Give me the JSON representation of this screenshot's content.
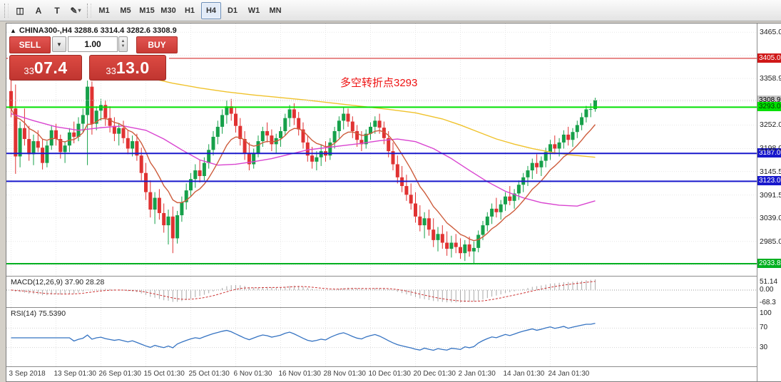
{
  "theme": {
    "candle_up": "#16a04a",
    "candle_down": "#e03232",
    "grid": "#e7e7e7",
    "macd_histogram": "#a9a9a9",
    "macd_signal": "#cc3333",
    "rsi_line": "#3573c2",
    "annotation_red": "#ee1111",
    "last_price_badge": "#c6c6c6"
  },
  "toolbar": {
    "tools": [
      {
        "name": "chart",
        "label": "◫"
      },
      {
        "name": "cursor",
        "label": "A"
      },
      {
        "name": "text",
        "label": "T"
      },
      {
        "name": "draw",
        "label": "✎"
      },
      {
        "name": "draw-dropdown",
        "label": "▾"
      }
    ],
    "timeframes": [
      {
        "label": "M1",
        "active": false
      },
      {
        "label": "M5",
        "active": false
      },
      {
        "label": "M15",
        "active": false
      },
      {
        "label": "M30",
        "active": false
      },
      {
        "label": "H1",
        "active": false
      },
      {
        "label": "H4",
        "active": true
      },
      {
        "label": "D1",
        "active": false
      },
      {
        "label": "W1",
        "active": false
      },
      {
        "label": "MN",
        "active": false
      }
    ]
  },
  "chart": {
    "collapse_icon": "▲",
    "title": "CHINA300-,H4 3288.6 3314.4 3282.6 3308.9",
    "annotation": "多空转折点3293",
    "trade_panel": {
      "sell_label": "SELL",
      "buy_label": "BUY",
      "volume": "1.00",
      "volume_dropdown_icon": "▼",
      "stepper_up": "▲",
      "stepper_down": "▼",
      "sell_price_full": "3307.4",
      "buy_price_full": "3313.0",
      "sell_price_prefix": "33",
      "sell_price_main": "07.4",
      "buy_price_prefix": "33",
      "buy_price_main": "13.0"
    },
    "levels": [
      {
        "price": 3405.0,
        "label": "3405.0",
        "color": "#d01818",
        "badge_text": "#ffffff",
        "lw": 1,
        "dotted": false
      },
      {
        "price": 3308.9,
        "label": "3308.9",
        "color": "#c6c6c6",
        "badge_text": "#000000",
        "lw": 1,
        "dotted": true
      },
      {
        "price": 3293.0,
        "label": "3293.0",
        "color": "#00e000",
        "badge_text": "#003300",
        "lw": 2,
        "dotted": false
      },
      {
        "price": 3187.0,
        "label": "3187.0",
        "color": "#1818cc",
        "badge_text": "#ffffff",
        "lw": 2,
        "dotted": false
      },
      {
        "price": 3123.0,
        "label": "3123.0",
        "color": "#1818cc",
        "badge_text": "#ffffff",
        "lw": 2,
        "dotted": false
      },
      {
        "price": 2933.8,
        "label": "2933.8",
        "color": "#00b020",
        "badge_text": "#ffffff",
        "lw": 2,
        "dotted": false
      }
    ],
    "price_ticks": [
      {
        "price": 3465.0,
        "label": "3465.0"
      },
      {
        "price": 3411.9,
        "label": ""
      },
      {
        "price": 3358.9,
        "label": "3358.9"
      },
      {
        "price": 3305.5,
        "label": ""
      },
      {
        "price": 3252.0,
        "label": "3252.0"
      },
      {
        "price": 3198.0,
        "label": "3198.0"
      },
      {
        "price": 3145.5,
        "label": "3145.5"
      },
      {
        "price": 3091.5,
        "label": "3091.5"
      },
      {
        "price": 3039.0,
        "label": "3039.0"
      },
      {
        "price": 2985.0,
        "label": "2985.0"
      },
      {
        "price": 2931.9,
        "label": ""
      }
    ]
  },
  "chart_data": {
    "type": "candlestick",
    "symbol": "CHINA300-",
    "period": "H4",
    "current_bar": {
      "open": 3288.6,
      "high": 3314.4,
      "low": 3282.6,
      "close": 3308.9
    },
    "price_range": [
      2906,
      3485
    ],
    "candles": [
      [
        3330,
        3358,
        3270,
        3290
      ],
      [
        3290,
        3345,
        3140,
        3180
      ],
      [
        3180,
        3260,
        3155,
        3245
      ],
      [
        3245,
        3290,
        3205,
        3220
      ],
      [
        3220,
        3250,
        3170,
        3185
      ],
      [
        3185,
        3230,
        3160,
        3215
      ],
      [
        3215,
        3240,
        3190,
        3200
      ],
      [
        3200,
        3220,
        3150,
        3165
      ],
      [
        3165,
        3215,
        3155,
        3205
      ],
      [
        3205,
        3250,
        3195,
        3240
      ],
      [
        3240,
        3255,
        3205,
        3220
      ],
      [
        3220,
        3230,
        3175,
        3190
      ],
      [
        3190,
        3215,
        3165,
        3205
      ],
      [
        3205,
        3245,
        3190,
        3235
      ],
      [
        3235,
        3260,
        3210,
        3225
      ],
      [
        3225,
        3270,
        3215,
        3255
      ],
      [
        3255,
        3290,
        3235,
        3275
      ],
      [
        3275,
        3362,
        3160,
        3340
      ],
      [
        3340,
        3352,
        3230,
        3255
      ],
      [
        3255,
        3295,
        3240,
        3285
      ],
      [
        3285,
        3312,
        3262,
        3298
      ],
      [
        3298,
        3308,
        3250,
        3268
      ],
      [
        3268,
        3295,
        3235,
        3250
      ],
      [
        3250,
        3270,
        3215,
        3232
      ],
      [
        3232,
        3255,
        3205,
        3245
      ],
      [
        3245,
        3262,
        3210,
        3222
      ],
      [
        3222,
        3240,
        3185,
        3198
      ],
      [
        3198,
        3228,
        3180,
        3215
      ],
      [
        3215,
        3232,
        3170,
        3182
      ],
      [
        3182,
        3200,
        3125,
        3142
      ],
      [
        3142,
        3165,
        3080,
        3098
      ],
      [
        3098,
        3125,
        3040,
        3058
      ],
      [
        3058,
        3098,
        3025,
        3085
      ],
      [
        3085,
        3105,
        3035,
        3050
      ],
      [
        3050,
        3072,
        3005,
        3022
      ],
      [
        3022,
        3058,
        2978,
        3042
      ],
      [
        3042,
        3065,
        2958,
        2992
      ],
      [
        2992,
        3055,
        2980,
        3045
      ],
      [
        3045,
        3088,
        3030,
        3075
      ],
      [
        3075,
        3118,
        3058,
        3102
      ],
      [
        3102,
        3142,
        3088,
        3128
      ],
      [
        3128,
        3162,
        3108,
        3148
      ],
      [
        3148,
        3172,
        3120,
        3135
      ],
      [
        3135,
        3178,
        3125,
        3165
      ],
      [
        3165,
        3208,
        3152,
        3195
      ],
      [
        3195,
        3238,
        3182,
        3225
      ],
      [
        3225,
        3262,
        3208,
        3248
      ],
      [
        3248,
        3288,
        3232,
        3275
      ],
      [
        3275,
        3308,
        3255,
        3295
      ],
      [
        3295,
        3312,
        3262,
        3278
      ],
      [
        3278,
        3292,
        3235,
        3250
      ],
      [
        3250,
        3268,
        3205,
        3220
      ],
      [
        3220,
        3238,
        3172,
        3188
      ],
      [
        3188,
        3212,
        3148,
        3162
      ],
      [
        3162,
        3198,
        3152,
        3188
      ],
      [
        3188,
        3228,
        3178,
        3215
      ],
      [
        3215,
        3248,
        3202,
        3238
      ],
      [
        3238,
        3258,
        3212,
        3228
      ],
      [
        3228,
        3242,
        3192,
        3208
      ],
      [
        3208,
        3232,
        3188,
        3222
      ],
      [
        3222,
        3248,
        3202,
        3238
      ],
      [
        3238,
        3278,
        3228,
        3268
      ],
      [
        3268,
        3298,
        3248,
        3288
      ],
      [
        3288,
        3302,
        3252,
        3268
      ],
      [
        3268,
        3282,
        3228,
        3242
      ],
      [
        3242,
        3258,
        3198,
        3212
      ],
      [
        3212,
        3228,
        3168,
        3182
      ],
      [
        3182,
        3202,
        3152,
        3168
      ],
      [
        3168,
        3192,
        3148,
        3178
      ],
      [
        3178,
        3208,
        3158,
        3192
      ],
      [
        3192,
        3215,
        3168,
        3182
      ],
      [
        3182,
        3222,
        3172,
        3212
      ],
      [
        3212,
        3248,
        3198,
        3238
      ],
      [
        3238,
        3272,
        3222,
        3262
      ],
      [
        3262,
        3292,
        3242,
        3278
      ],
      [
        3278,
        3290,
        3248,
        3260
      ],
      [
        3260,
        3272,
        3222,
        3238
      ],
      [
        3238,
        3252,
        3202,
        3218
      ],
      [
        3218,
        3238,
        3192,
        3208
      ],
      [
        3208,
        3242,
        3198,
        3232
      ],
      [
        3232,
        3258,
        3218,
        3248
      ],
      [
        3248,
        3272,
        3232,
        3262
      ],
      [
        3262,
        3278,
        3232,
        3246
      ],
      [
        3246,
        3260,
        3208,
        3222
      ],
      [
        3222,
        3238,
        3178,
        3192
      ],
      [
        3192,
        3212,
        3148,
        3162
      ],
      [
        3162,
        3182,
        3118,
        3132
      ],
      [
        3132,
        3158,
        3098,
        3112
      ],
      [
        3112,
        3138,
        3078,
        3092
      ],
      [
        3092,
        3118,
        3058,
        3072
      ],
      [
        3072,
        3098,
        3028,
        3042
      ],
      [
        3042,
        3068,
        3008,
        3022
      ],
      [
        3022,
        3052,
        2992,
        3038
      ],
      [
        3038,
        3058,
        2998,
        3012
      ],
      [
        3012,
        3038,
        2972,
        2988
      ],
      [
        2988,
        3018,
        2962,
        3002
      ],
      [
        3002,
        3022,
        2968,
        2982
      ],
      [
        2982,
        3008,
        2952,
        2968
      ],
      [
        2968,
        2998,
        2948,
        2982
      ],
      [
        2982,
        3002,
        2958,
        2972
      ],
      [
        2972,
        2992,
        2945,
        2958
      ],
      [
        2958,
        2988,
        2940,
        2978
      ],
      [
        2978,
        2996,
        2950,
        2962
      ],
      [
        2962,
        2985,
        2933,
        2970
      ],
      [
        2970,
        3010,
        2960,
        3000
      ],
      [
        3000,
        3032,
        2988,
        3022
      ],
      [
        3022,
        3052,
        3008,
        3042
      ],
      [
        3042,
        3072,
        3025,
        3060
      ],
      [
        3060,
        3085,
        3040,
        3052
      ],
      [
        3052,
        3080,
        3035,
        3070
      ],
      [
        3070,
        3098,
        3055,
        3088
      ],
      [
        3088,
        3112,
        3068,
        3078
      ],
      [
        3078,
        3105,
        3060,
        3095
      ],
      [
        3095,
        3125,
        3080,
        3115
      ],
      [
        3115,
        3142,
        3098,
        3132
      ],
      [
        3132,
        3158,
        3112,
        3148
      ],
      [
        3148,
        3175,
        3128,
        3165
      ],
      [
        3165,
        3185,
        3140,
        3155
      ],
      [
        3155,
        3180,
        3135,
        3170
      ],
      [
        3170,
        3200,
        3155,
        3190
      ],
      [
        3190,
        3218,
        3172,
        3208
      ],
      [
        3208,
        3228,
        3185,
        3198
      ],
      [
        3198,
        3222,
        3180,
        3212
      ],
      [
        3212,
        3240,
        3198,
        3230
      ],
      [
        3230,
        3248,
        3205,
        3218
      ],
      [
        3218,
        3245,
        3202,
        3236
      ],
      [
        3236,
        3262,
        3222,
        3252
      ],
      [
        3252,
        3280,
        3240,
        3270
      ],
      [
        3270,
        3296,
        3258,
        3288
      ],
      [
        3288,
        3302,
        3270,
        3288.6
      ],
      [
        3288.6,
        3314.4,
        3282.6,
        3308.9
      ]
    ],
    "time_labels": [
      {
        "idx": 0,
        "label": "3 Sep 2018"
      },
      {
        "idx": 10,
        "label": "13 Sep 01:30"
      },
      {
        "idx": 20,
        "label": "26 Sep 01:30"
      },
      {
        "idx": 30,
        "label": "15 Oct 01:30"
      },
      {
        "idx": 40,
        "label": "25 Oct 01:30"
      },
      {
        "idx": 50,
        "label": "6 Nov 01:30"
      },
      {
        "idx": 60,
        "label": "16 Nov 01:30"
      },
      {
        "idx": 70,
        "label": "28 Nov 01:30"
      },
      {
        "idx": 80,
        "label": "10 Dec 01:30"
      },
      {
        "idx": 90,
        "label": "20 Dec 01:30"
      },
      {
        "idx": 100,
        "label": "2 Jan 01:30"
      },
      {
        "idx": 110,
        "label": "14 Jan 01:30"
      },
      {
        "idx": 120,
        "label": "24 Jan 01:30"
      }
    ],
    "moving_averages": [
      {
        "name": "ma-slow",
        "color": "#f0c22b",
        "points": [
          [
            0,
            3402
          ],
          [
            8,
            3394
          ],
          [
            16,
            3384
          ],
          [
            24,
            3372
          ],
          [
            30,
            3362
          ],
          [
            36,
            3348
          ],
          [
            42,
            3337
          ],
          [
            48,
            3328
          ],
          [
            54,
            3321
          ],
          [
            60,
            3315
          ],
          [
            66,
            3309
          ],
          [
            72,
            3302
          ],
          [
            78,
            3295
          ],
          [
            84,
            3288
          ],
          [
            90,
            3280
          ],
          [
            96,
            3266
          ],
          [
            100,
            3252
          ],
          [
            104,
            3236
          ],
          [
            108,
            3220
          ],
          [
            112,
            3208
          ],
          [
            116,
            3198
          ],
          [
            120,
            3190
          ],
          [
            124,
            3184
          ],
          [
            128,
            3180
          ],
          [
            130,
            3178
          ]
        ]
      },
      {
        "name": "ma-mid",
        "color": "#d944d0",
        "points": [
          [
            0,
            3278
          ],
          [
            5,
            3262
          ],
          [
            10,
            3248
          ],
          [
            15,
            3240
          ],
          [
            20,
            3246
          ],
          [
            25,
            3250
          ],
          [
            30,
            3240
          ],
          [
            34,
            3220
          ],
          [
            38,
            3195
          ],
          [
            42,
            3172
          ],
          [
            46,
            3160
          ],
          [
            50,
            3162
          ],
          [
            54,
            3168
          ],
          [
            58,
            3175
          ],
          [
            62,
            3185
          ],
          [
            66,
            3195
          ],
          [
            70,
            3200
          ],
          [
            74,
            3205
          ],
          [
            78,
            3210
          ],
          [
            82,
            3216
          ],
          [
            86,
            3220
          ],
          [
            90,
            3214
          ],
          [
            94,
            3198
          ],
          [
            98,
            3175
          ],
          [
            102,
            3148
          ],
          [
            106,
            3122
          ],
          [
            110,
            3100
          ],
          [
            114,
            3085
          ],
          [
            118,
            3074
          ],
          [
            122,
            3068
          ],
          [
            126,
            3066
          ],
          [
            130,
            3078
          ]
        ]
      },
      {
        "name": "ma-fast",
        "color": "#cd5c3c",
        "period": 10,
        "computed": true
      }
    ]
  },
  "macd": {
    "label": "MACD(12,26,9) 37.90 28.28",
    "params": [
      12,
      26,
      9
    ],
    "main_value": 37.9,
    "signal_value": 28.28,
    "axis": [
      "51.14",
      "0.00",
      "-68.3"
    ]
  },
  "rsi": {
    "label": "RSI(14) 75.5390",
    "period": 14,
    "value": 75.539,
    "axis": [
      "100",
      "70",
      "30"
    ],
    "levels": [
      70,
      30
    ]
  }
}
